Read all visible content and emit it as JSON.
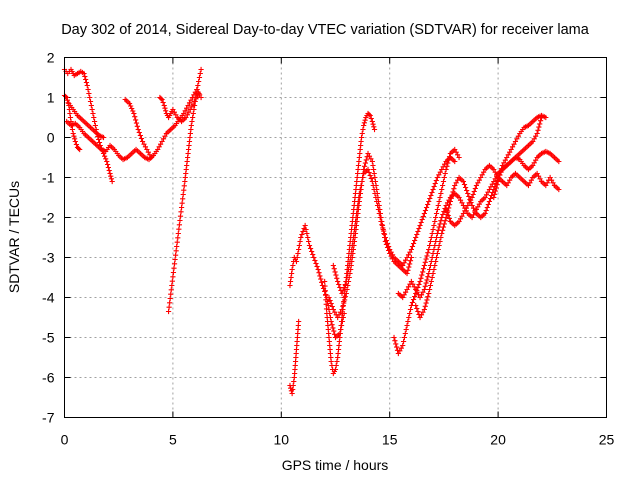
{
  "chart_data": {
    "type": "scatter",
    "title": "Day 302 of 2014, Sidereal Day-to-day VTEC variation (SDTVAR) for receiver lama",
    "xlabel": "GPS time / hours",
    "ylabel": "SDTVAR / TECUs",
    "xlim": [
      0,
      25
    ],
    "ylim": [
      -7,
      2
    ],
    "xticks": [
      "0",
      "5",
      "10",
      "15",
      "20",
      "25"
    ],
    "yticks": [
      "2",
      "1",
      "0",
      "-1",
      "-2",
      "-3",
      "-4",
      "-5",
      "-6",
      "-7"
    ],
    "grid": true,
    "marker": "plus",
    "color": "#ff0000",
    "series": [
      {
        "x": [
          0.0,
          0.15,
          0.3,
          0.45,
          0.6,
          0.75,
          0.9,
          1.05,
          1.2,
          1.35,
          1.5,
          1.65,
          1.8,
          1.95,
          2.1,
          2.2
        ],
        "y": [
          1.7,
          1.6,
          1.7,
          1.55,
          1.6,
          1.65,
          1.6,
          1.3,
          0.9,
          0.5,
          0.1,
          -0.2,
          -0.4,
          -0.6,
          -0.9,
          -1.1
        ]
      },
      {
        "x": [
          0.0,
          0.1,
          0.2,
          0.3,
          0.4,
          0.5,
          0.6,
          0.7
        ],
        "y": [
          1.05,
          1.0,
          0.8,
          0.4,
          0.1,
          -0.1,
          -0.25,
          -0.3
        ]
      },
      {
        "x": [
          0.1,
          0.3,
          0.5,
          0.7,
          0.9,
          1.1,
          1.3,
          1.5,
          1.7,
          1.9,
          2.1,
          2.3,
          2.5,
          2.7,
          2.9,
          3.1,
          3.3,
          3.5,
          3.7,
          3.9,
          4.1,
          4.3,
          4.5,
          4.7,
          4.9,
          5.1,
          5.3,
          5.5,
          5.7,
          5.9,
          6.1,
          6.3
        ],
        "y": [
          0.4,
          0.3,
          0.35,
          0.25,
          0.1,
          0.0,
          -0.1,
          -0.2,
          -0.3,
          -0.35,
          -0.2,
          -0.3,
          -0.45,
          -0.55,
          -0.5,
          -0.4,
          -0.3,
          -0.4,
          -0.5,
          -0.55,
          -0.45,
          -0.3,
          -0.1,
          0.1,
          0.2,
          0.3,
          0.45,
          0.6,
          0.8,
          1.0,
          1.2,
          1.0
        ]
      },
      {
        "x": [
          0.2,
          0.4,
          0.6,
          0.8,
          1.0,
          1.2,
          1.4,
          1.6,
          1.8
        ],
        "y": [
          0.85,
          0.7,
          0.55,
          0.45,
          0.35,
          0.25,
          0.15,
          0.05,
          0.0
        ]
      },
      {
        "x": [
          2.8,
          3.0,
          3.2,
          3.4,
          3.6,
          3.8,
          4.0
        ],
        "y": [
          0.95,
          0.85,
          0.6,
          0.2,
          -0.1,
          -0.3,
          -0.5
        ]
      },
      {
        "x": [
          4.4,
          4.5,
          4.6,
          4.7,
          4.8,
          4.9,
          5.0,
          5.2,
          5.4,
          5.6,
          5.8,
          6.0,
          6.2
        ],
        "y": [
          1.0,
          0.95,
          0.8,
          0.6,
          0.5,
          0.6,
          0.7,
          0.5,
          0.4,
          0.5,
          0.7,
          0.9,
          1.1
        ]
      },
      {
        "x": [
          4.8,
          4.95,
          5.1,
          5.25,
          5.4,
          5.55,
          5.7,
          5.85,
          6.0,
          6.15,
          6.3
        ],
        "y": [
          -4.35,
          -3.7,
          -3.05,
          -2.4,
          -1.75,
          -1.1,
          -0.4,
          0.3,
          0.8,
          1.3,
          1.7
        ]
      },
      {
        "x": [
          10.4,
          10.5,
          10.6,
          10.7,
          10.8
        ],
        "y": [
          -6.2,
          -6.4,
          -6.0,
          -5.3,
          -4.6
        ]
      },
      {
        "x": [
          10.4,
          10.5,
          10.6,
          10.7,
          10.9,
          11.1,
          11.3,
          11.5,
          11.7,
          11.9,
          12.1,
          12.3,
          12.5,
          12.7,
          12.9
        ],
        "y": [
          -3.7,
          -3.3,
          -3.0,
          -3.1,
          -2.5,
          -2.2,
          -2.7,
          -3.0,
          -3.3,
          -3.7,
          -4.0,
          -4.6,
          -5.0,
          -4.9,
          -4.4
        ]
      },
      {
        "x": [
          12.0,
          12.1,
          12.2,
          12.3,
          12.4,
          12.5,
          12.6,
          12.7,
          12.8,
          12.9,
          13.0,
          13.1,
          13.2,
          13.3,
          13.4,
          13.5,
          13.6,
          13.7,
          13.8,
          13.9,
          14.0,
          14.1,
          14.2,
          14.3
        ],
        "y": [
          -3.6,
          -4.4,
          -5.0,
          -5.6,
          -5.9,
          -5.8,
          -5.5,
          -5.0,
          -4.5,
          -4.0,
          -3.5,
          -3.0,
          -2.5,
          -2.0,
          -1.5,
          -1.0,
          -0.5,
          0.0,
          0.3,
          0.5,
          0.6,
          0.55,
          0.4,
          0.2
        ]
      },
      {
        "x": [
          12.2,
          12.4,
          12.6,
          12.8,
          13.0,
          13.2,
          13.4,
          13.6,
          13.8,
          14.0,
          14.2,
          14.4,
          14.6,
          14.8,
          15.0,
          15.2,
          15.4,
          15.6,
          15.8,
          16.0
        ],
        "y": [
          -4.0,
          -4.3,
          -4.5,
          -4.3,
          -3.9,
          -3.3,
          -2.5,
          -1.6,
          -0.8,
          -0.4,
          -0.6,
          -1.3,
          -2.0,
          -2.6,
          -2.9,
          -3.1,
          -3.2,
          -3.3,
          -3.4,
          -3.0
        ]
      },
      {
        "x": [
          12.4,
          12.6,
          12.8,
          13.0,
          13.2,
          13.4,
          13.6,
          13.8,
          14.0,
          14.2,
          14.4,
          14.6,
          14.8,
          15.0,
          15.2,
          15.4,
          15.6,
          15.8,
          16.0,
          16.2,
          16.4,
          16.6,
          16.8,
          17.0,
          17.2,
          17.4,
          17.6,
          17.8,
          18.0
        ],
        "y": [
          -3.2,
          -3.6,
          -3.9,
          -3.6,
          -3.0,
          -2.2,
          -1.4,
          -0.9,
          -0.8,
          -1.1,
          -1.6,
          -2.1,
          -2.5,
          -2.8,
          -3.0,
          -3.1,
          -3.2,
          -3.0,
          -2.8,
          -2.5,
          -2.2,
          -1.9,
          -1.6,
          -1.3,
          -1.0,
          -0.8,
          -0.6,
          -0.5,
          -0.6
        ]
      },
      {
        "x": [
          15.2,
          15.4,
          15.6,
          15.8,
          16.0,
          16.2,
          16.4,
          16.6,
          16.8,
          17.0,
          17.2,
          17.4,
          17.6,
          17.8,
          18.0,
          18.2
        ],
        "y": [
          -5.0,
          -5.4,
          -5.2,
          -4.7,
          -4.2,
          -3.9,
          -3.6,
          -3.2,
          -2.8,
          -2.3,
          -1.8,
          -1.3,
          -0.8,
          -0.4,
          -0.3,
          -0.5
        ]
      },
      {
        "x": [
          15.4,
          15.6,
          15.8,
          16.0,
          16.2,
          16.4,
          16.6,
          16.8,
          17.0,
          17.2,
          17.4,
          17.6,
          17.8,
          18.0,
          18.2,
          18.4,
          18.6,
          18.8,
          19.0,
          19.2,
          19.4,
          19.6,
          19.8,
          20.0,
          20.2,
          20.4,
          20.6,
          20.8,
          21.0,
          21.2,
          21.4,
          21.6,
          21.8,
          22.0
        ],
        "y": [
          -3.9,
          -4.0,
          -3.8,
          -3.6,
          -3.8,
          -4.0,
          -3.8,
          -3.4,
          -2.9,
          -2.4,
          -2.0,
          -1.7,
          -1.5,
          -1.4,
          -1.5,
          -1.7,
          -1.9,
          -2.0,
          -1.8,
          -1.6,
          -1.5,
          -1.3,
          -1.1,
          -0.9,
          -0.8,
          -0.7,
          -0.6,
          -0.5,
          -0.4,
          -0.3,
          -0.2,
          -0.1,
          0.1,
          0.5
        ]
      },
      {
        "x": [
          16.2,
          16.4,
          16.6,
          16.8,
          17.0,
          17.2,
          17.4,
          17.6,
          17.8,
          18.0,
          18.2,
          18.4,
          18.6,
          18.8,
          19.0,
          19.2,
          19.4,
          19.6,
          19.8,
          20.0,
          20.2,
          20.4,
          20.6,
          20.8,
          21.0,
          21.2,
          21.4,
          21.6,
          21.8,
          22.0,
          22.2,
          22.4,
          22.6,
          22.8
        ],
        "y": [
          -4.2,
          -4.5,
          -4.3,
          -3.9,
          -3.4,
          -2.9,
          -2.4,
          -2.0,
          -1.6,
          -1.2,
          -1.0,
          -1.1,
          -1.4,
          -1.7,
          -1.9,
          -2.0,
          -1.9,
          -1.6,
          -1.3,
          -1.0,
          -0.8,
          -0.7,
          -0.6,
          -0.5,
          -0.55,
          -0.7,
          -0.8,
          -0.7,
          -0.5,
          -0.4,
          -0.35,
          -0.4,
          -0.5,
          -0.6
        ]
      },
      {
        "x": [
          17.6,
          17.8,
          18.0,
          18.2,
          18.4,
          18.6,
          18.8,
          19.0,
          19.2,
          19.4,
          19.6,
          19.8,
          20.0,
          20.2,
          20.4,
          20.6,
          20.8,
          21.0,
          21.2,
          21.4,
          21.6,
          21.8,
          22.0,
          22.2,
          22.4,
          22.6,
          22.8
        ],
        "y": [
          -1.8,
          -2.1,
          -2.2,
          -2.1,
          -1.9,
          -1.7,
          -1.5,
          -1.2,
          -1.0,
          -0.8,
          -0.7,
          -0.8,
          -1.0,
          -1.1,
          -1.2,
          -1.0,
          -0.9,
          -1.0,
          -1.1,
          -1.2,
          -1.0,
          -0.9,
          -1.1,
          -1.2,
          -1.0,
          -1.2,
          -1.3
        ]
      },
      {
        "x": [
          19.8,
          20.0,
          20.2,
          20.4,
          20.6,
          20.8,
          21.0,
          21.2,
          21.4,
          21.6,
          21.8,
          22.0,
          22.2
        ],
        "y": [
          -1.5,
          -1.1,
          -0.7,
          -0.5,
          -0.3,
          -0.1,
          0.1,
          0.25,
          0.3,
          0.4,
          0.5,
          0.55,
          0.5
        ]
      }
    ]
  }
}
